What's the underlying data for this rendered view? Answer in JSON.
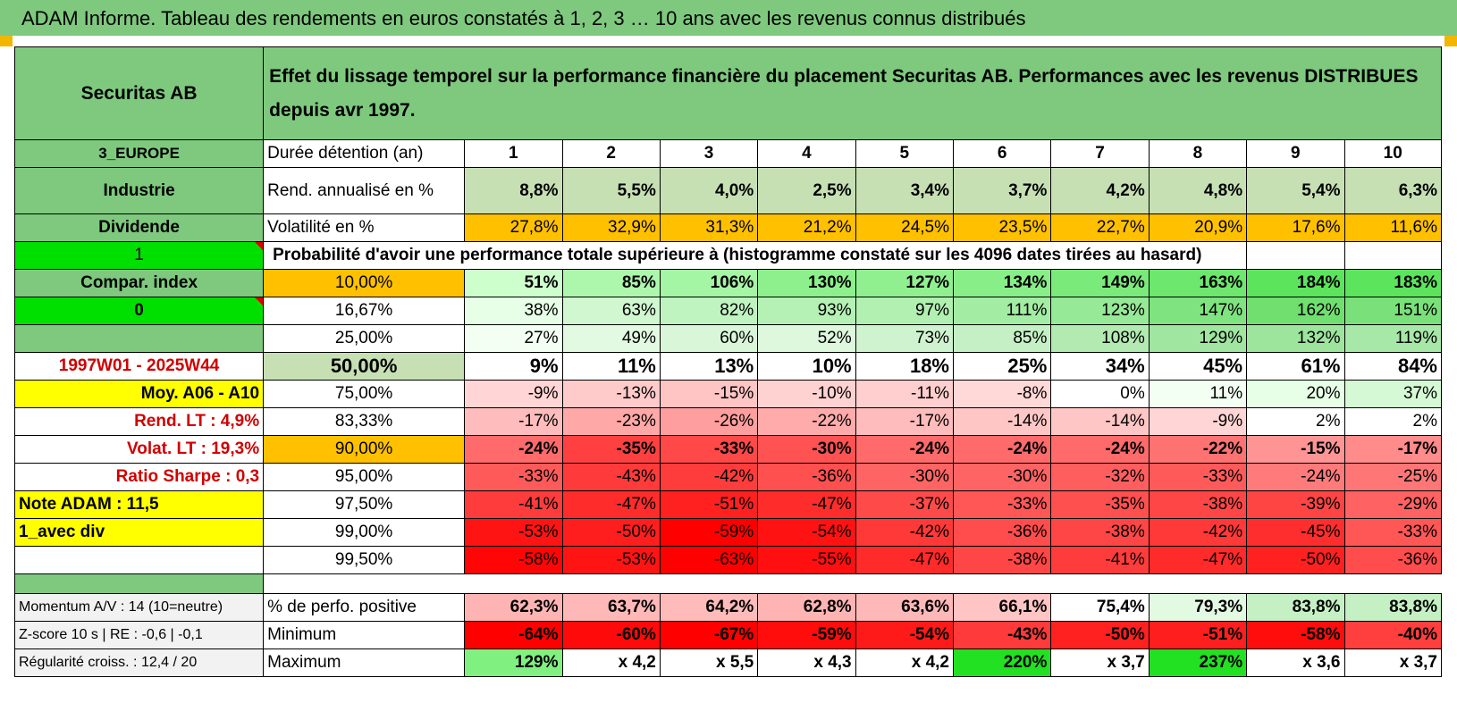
{
  "title": "ADAM Informe. Tableau des rendements en euros constatés à 1, 2, 3 … 10 ans avec les revenus connus distribués",
  "header": {
    "name": "Securitas AB",
    "description": "Effet du lissage temporel sur la performance financière du placement Securitas AB. Performances avec les revenus DISTRIBUES depuis avr 1997."
  },
  "left": {
    "region": "3_EUROPE",
    "sector": "Industrie",
    "type": "Dividende",
    "flag1": "1",
    "compar": "Compar. index",
    "flag2": "0",
    "period": "1997W01 - 2025W44",
    "moy": "Moy. A06 - A10",
    "rend_lt": "Rend. LT :    4,9%",
    "volat_lt": "Volat. LT :    19,3%",
    "sharpe": "Ratio Sharpe :     0,3",
    "note": "Note ADAM : 11,5",
    "div": "1_avec div"
  },
  "row_labels": {
    "duree": "Durée détention (an)",
    "rend": "Rend. annualisé en %",
    "vol": "Volatilité en %",
    "proba": "Probabilité d'avoir une performance totale supérieure à (histogramme constaté sur les 4096 dates tirées au hasard)"
  },
  "years": [
    "1",
    "2",
    "3",
    "4",
    "5",
    "6",
    "7",
    "8",
    "9",
    "10"
  ],
  "rend": [
    "8,8%",
    "5,5%",
    "4,0%",
    "2,5%",
    "3,4%",
    "3,7%",
    "4,2%",
    "4,8%",
    "5,4%",
    "6,3%"
  ],
  "vol": [
    "27,8%",
    "32,9%",
    "31,3%",
    "21,2%",
    "24,5%",
    "23,5%",
    "22,7%",
    "20,9%",
    "17,6%",
    "11,6%"
  ],
  "quantiles": [
    {
      "p": "10,00%",
      "v": [
        "51%",
        "85%",
        "106%",
        "130%",
        "127%",
        "134%",
        "149%",
        "163%",
        "184%",
        "183%"
      ],
      "c": [
        "#ccffcc",
        "#adf7ad",
        "#a4f5a4",
        "#8df08d",
        "#90f090",
        "#88ee88",
        "#7aeb7a",
        "#6de76d",
        "#5ce45c",
        "#5ce45c"
      ]
    },
    {
      "p": "16,67%",
      "v": [
        "38%",
        "63%",
        "82%",
        "93%",
        "97%",
        "111%",
        "123%",
        "147%",
        "162%",
        "151%"
      ],
      "c": [
        "#e6ffe6",
        "#d0f7d0",
        "#bff3bf",
        "#b5f1b5",
        "#b1f0b1",
        "#a3eca3",
        "#96e996",
        "#7fe37f",
        "#70df70",
        "#7ae17a"
      ]
    },
    {
      "p": "25,00%",
      "v": [
        "27%",
        "49%",
        "60%",
        "52%",
        "73%",
        "85%",
        "108%",
        "129%",
        "132%",
        "119%"
      ],
      "c": [
        "#f2fff2",
        "#e2f9e2",
        "#d9f6d9",
        "#def8de",
        "#cff3cf",
        "#c5f0c5",
        "#b2eab2",
        "#a0e5a0",
        "#9de49d",
        "#a7e7a7"
      ]
    },
    {
      "p": "50,00%",
      "v": [
        "9%",
        "11%",
        "13%",
        "10%",
        "18%",
        "25%",
        "34%",
        "45%",
        "61%",
        "84%"
      ],
      "c": [
        "#ffffff",
        "#ffffff",
        "#ffffff",
        "#ffffff",
        "#ffffff",
        "#ffffff",
        "#ffffff",
        "#ffffff",
        "#ffffff",
        "#ffffff"
      ]
    },
    {
      "p": "75,00%",
      "v": [
        "-9%",
        "-13%",
        "-15%",
        "-10%",
        "-11%",
        "-8%",
        "0%",
        "11%",
        "20%",
        "37%"
      ],
      "c": [
        "#ffd5d5",
        "#ffcaca",
        "#ffc4c4",
        "#ffd2d2",
        "#ffcfcf",
        "#ffd8d8",
        "#ffffff",
        "#f2fff2",
        "#e6ffe6",
        "#d4f9d4"
      ]
    },
    {
      "p": "83,33%",
      "v": [
        "-17%",
        "-23%",
        "-26%",
        "-22%",
        "-17%",
        "-14%",
        "-14%",
        "-9%",
        "2%",
        "2%"
      ],
      "c": [
        "#ffbcbc",
        "#ffa8a8",
        "#ff9e9e",
        "#ffabab",
        "#ffbcbc",
        "#ffc6c6",
        "#ffc6c6",
        "#ffd5d5",
        "#ffffff",
        "#ffffff"
      ]
    },
    {
      "p": "90,00%",
      "v": [
        "-24%",
        "-35%",
        "-33%",
        "-30%",
        "-24%",
        "-24%",
        "-24%",
        "-22%",
        "-15%",
        "-17%"
      ],
      "c": [
        "#ff6a6a",
        "#ff4040",
        "#ff4848",
        "#ff5252",
        "#ff6a6a",
        "#ff6a6a",
        "#ff6a6a",
        "#ff7272",
        "#ff9494",
        "#ff8b8b"
      ]
    },
    {
      "p": "95,00%",
      "v": [
        "-33%",
        "-43%",
        "-42%",
        "-36%",
        "-30%",
        "-30%",
        "-32%",
        "-33%",
        "-24%",
        "-25%"
      ],
      "c": [
        "#ff5a5a",
        "#ff3a3a",
        "#ff3c3c",
        "#ff5050",
        "#ff6464",
        "#ff6464",
        "#ff5e5e",
        "#ff5a5a",
        "#ff7a7a",
        "#ff7676"
      ]
    },
    {
      "p": "97,50%",
      "v": [
        "-41%",
        "-47%",
        "-51%",
        "-47%",
        "-37%",
        "-33%",
        "-35%",
        "-38%",
        "-39%",
        "-29%"
      ],
      "c": [
        "#ff3c3c",
        "#ff2c2c",
        "#ff2020",
        "#ff2c2c",
        "#ff4a4a",
        "#ff5656",
        "#ff5050",
        "#ff4646",
        "#ff4444",
        "#ff6262"
      ]
    },
    {
      "p": "99,00%",
      "v": [
        "-53%",
        "-50%",
        "-59%",
        "-54%",
        "-42%",
        "-36%",
        "-38%",
        "-42%",
        "-45%",
        "-33%"
      ],
      "c": [
        "#ff1414",
        "#ff1e1e",
        "#ff0000",
        "#ff1212",
        "#ff3838",
        "#ff4c4c",
        "#ff4646",
        "#ff3838",
        "#ff2e2e",
        "#ff5656"
      ]
    },
    {
      "p": "99,50%",
      "v": [
        "-58%",
        "-53%",
        "-63%",
        "-55%",
        "-47%",
        "-38%",
        "-41%",
        "-47%",
        "-50%",
        "-36%"
      ],
      "c": [
        "#ff0505",
        "#ff1414",
        "#ff0000",
        "#ff0f0f",
        "#ff2a2a",
        "#ff4646",
        "#ff3c3c",
        "#ff2a2a",
        "#ff2020",
        "#ff4c4c"
      ]
    }
  ],
  "bottom": {
    "momentum": "Momentum A/V : 14 (10=neutre)",
    "zscore": "Z-score 10 s | RE : -0,6 | -0,1",
    "regul": "Régularité croiss. : 12,4 / 20",
    "pos_label": "% de perfo. positive",
    "min_label": "Minimum",
    "max_label": "Maximum",
    "pos": [
      "62,3%",
      "63,7%",
      "64,2%",
      "62,8%",
      "63,6%",
      "66,1%",
      "75,4%",
      "79,3%",
      "83,8%",
      "83,8%"
    ],
    "pos_c": [
      "#ffb4b4",
      "#ffb8b8",
      "#ffbaba",
      "#ffb4b4",
      "#ffb8b8",
      "#ffc4c4",
      "#ffffff",
      "#e2f9e2",
      "#c4f0c4",
      "#c4f0c4"
    ],
    "min": [
      "-64%",
      "-60%",
      "-67%",
      "-59%",
      "-54%",
      "-43%",
      "-50%",
      "-51%",
      "-58%",
      "-40%"
    ],
    "min_c": [
      "#ff0000",
      "#ff0a0a",
      "#ff0000",
      "#ff0c0c",
      "#ff1a1a",
      "#ff3a3a",
      "#ff2020",
      "#ff1e1e",
      "#ff0c0c",
      "#ff3e3e"
    ],
    "max": [
      "129%",
      "x 4,2",
      "x 5,5",
      "x 4,3",
      "x 4,2",
      "220%",
      "x 3,7",
      "237%",
      "x 3,6",
      "x 3,7"
    ],
    "max_c": [
      "#80f080",
      "#ffffff",
      "#ffffff",
      "#ffffff",
      "#ffffff",
      "#22e022",
      "#ffffff",
      "#22e022",
      "#ffffff",
      "#ffffff"
    ]
  },
  "colors": {
    "header_green": "#7ec97e",
    "volatility_orange": "#ffc000",
    "rend_pale_green": "#c6e0b4",
    "highlight_yellow": "#ffff00",
    "flag_green": "#00e000",
    "label_red": "#d00000"
  }
}
